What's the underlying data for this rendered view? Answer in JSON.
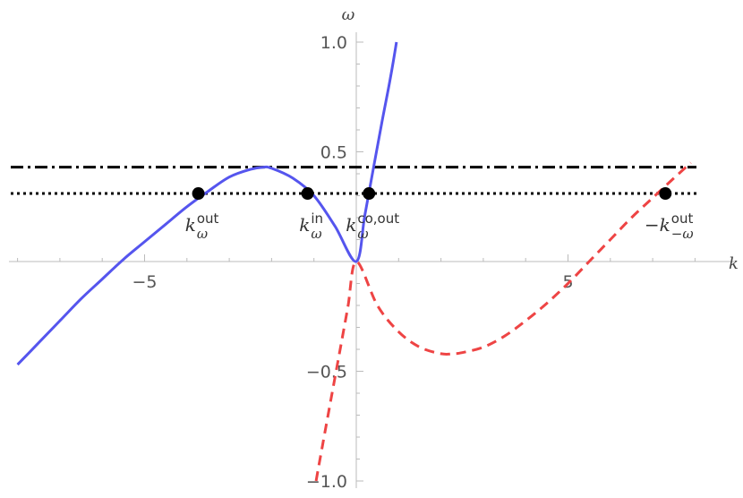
{
  "chart_data": {
    "type": "line",
    "xlabel": "k",
    "ylabel": "ω",
    "xlim": [
      -8.2,
      8.2
    ],
    "ylim": [
      -1.0,
      1.05
    ],
    "x_ticks": [
      {
        "value": -5,
        "label": "−5"
      },
      {
        "value": 5,
        "label": "5"
      }
    ],
    "y_ticks": [
      {
        "value": 1.0,
        "label": "1.0"
      },
      {
        "value": 0.5,
        "label": "0.5"
      },
      {
        "value": -0.5,
        "label": "−0.5"
      },
      {
        "value": -1.0,
        "label": "−1.0"
      }
    ],
    "series": [
      {
        "style": "solid",
        "color": "#5555ee",
        "x": [
          -8.0,
          -7.5,
          -7.0,
          -6.5,
          -6.0,
          -5.5,
          -5.0,
          -4.5,
          -4.0,
          -3.5,
          -3.0,
          -2.5,
          -2.2,
          -2.0,
          -1.5,
          -1.0,
          -0.5,
          0.0,
          0.2,
          0.4,
          0.6,
          0.8,
          0.95
        ],
        "y": [
          -0.47,
          -0.37,
          -0.27,
          -0.17,
          -0.08,
          0.01,
          0.09,
          0.17,
          0.25,
          0.32,
          0.385,
          0.42,
          0.43,
          0.425,
          0.38,
          0.3,
          0.16,
          0.0,
          0.21,
          0.42,
          0.63,
          0.83,
          1.0
        ]
      },
      {
        "style": "dashed",
        "color": "#ee4444",
        "x": [
          -0.95,
          -0.8,
          -0.6,
          -0.4,
          -0.2,
          0.0,
          0.5,
          1.0,
          1.5,
          2.0,
          2.3,
          2.5,
          3.0,
          3.5,
          4.0,
          4.5,
          5.0,
          5.5,
          6.0,
          6.5,
          7.0,
          7.5,
          7.9
        ],
        "y": [
          -1.0,
          -0.84,
          -0.63,
          -0.42,
          -0.21,
          0.0,
          -0.2,
          -0.32,
          -0.39,
          -0.42,
          -0.42,
          -0.415,
          -0.39,
          -0.34,
          -0.27,
          -0.19,
          -0.1,
          0.0,
          0.1,
          0.2,
          0.29,
          0.38,
          0.45
        ]
      }
    ],
    "hlines": [
      {
        "y": 0.43,
        "style": "dashdot",
        "color": "#000000"
      },
      {
        "y": 0.31,
        "style": "dotted",
        "color": "#000000"
      }
    ],
    "points": [
      {
        "x": -3.73,
        "y": 0.31
      },
      {
        "x": -1.15,
        "y": 0.31
      },
      {
        "x": 0.3,
        "y": 0.31
      },
      {
        "x": 7.3,
        "y": 0.31
      }
    ],
    "annotations": [
      {
        "x": -3.73,
        "main": "k",
        "sup": "out",
        "sub": "ω"
      },
      {
        "x": -1.15,
        "main": "k",
        "sup": "in",
        "sub": "ω"
      },
      {
        "x": 0.3,
        "main": "k",
        "sup": "co,out",
        "sub": "ω"
      },
      {
        "x": 7.3,
        "main": "−k",
        "sup": "out",
        "sub": "−ω"
      }
    ]
  }
}
